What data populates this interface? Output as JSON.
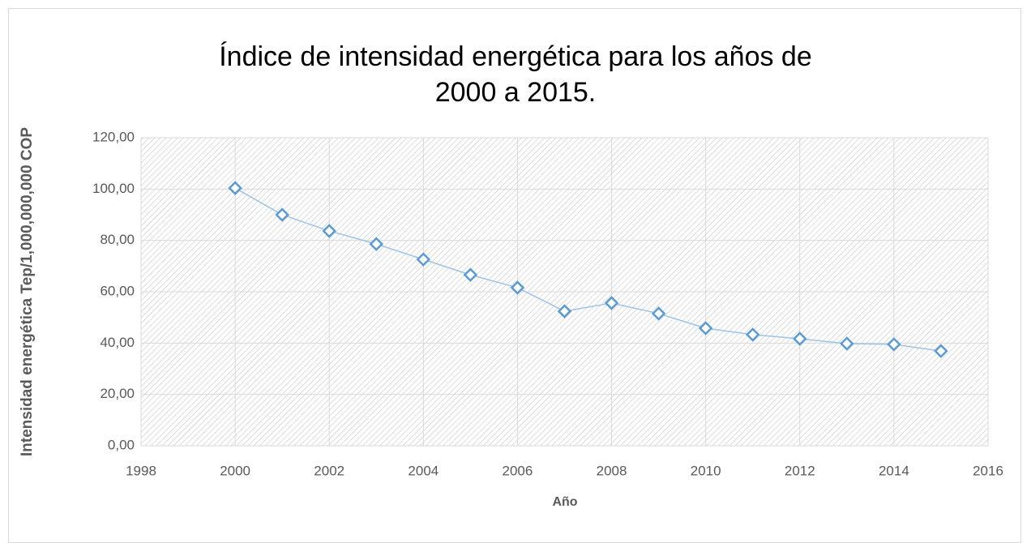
{
  "chart_data": {
    "type": "line",
    "title": "Índice de intensidad energética para los años de 2000 a 2015.",
    "x_label": "Año",
    "y_label": "Intensidad energética Tep/1,000,000,000 COP",
    "x": [
      2000,
      2001,
      2002,
      2003,
      2004,
      2005,
      2006,
      2007,
      2008,
      2009,
      2010,
      2011,
      2012,
      2013,
      2014,
      2015
    ],
    "series": [
      {
        "name": "Intensidad energética",
        "color": "#5b9bd5",
        "values": [
          100.4,
          90.0,
          83.7,
          78.6,
          72.6,
          66.6,
          61.6,
          52.4,
          55.6,
          51.5,
          45.8,
          43.3,
          41.7,
          39.8,
          39.5,
          36.9
        ]
      }
    ],
    "xlim": [
      1998,
      2016
    ],
    "xticks": [
      1998,
      2000,
      2002,
      2004,
      2006,
      2008,
      2010,
      2012,
      2014,
      2016
    ],
    "ylim": [
      0,
      120
    ],
    "yticks": [
      {
        "value": 0,
        "label": "0,00"
      },
      {
        "value": 20,
        "label": "20,00"
      },
      {
        "value": 40,
        "label": "40,00"
      },
      {
        "value": 60,
        "label": "60,00"
      },
      {
        "value": 80,
        "label": "80,00"
      },
      {
        "value": 100,
        "label": "100,00"
      },
      {
        "value": 120,
        "label": "120,00"
      }
    ],
    "grid": true
  }
}
